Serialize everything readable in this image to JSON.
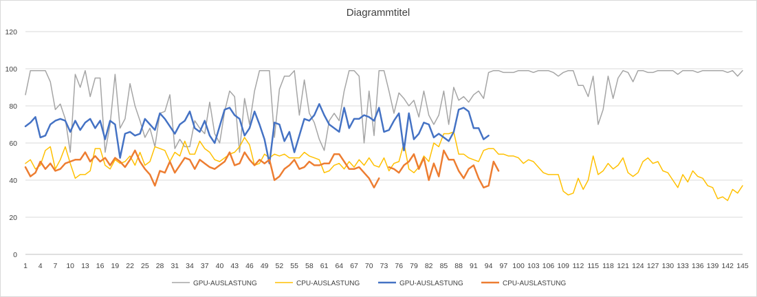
{
  "chart_data": {
    "type": "line",
    "title": "Diagrammtitel",
    "xlabel": "",
    "ylabel": "",
    "ylim": [
      0,
      120
    ],
    "yticks": [
      0,
      20,
      40,
      60,
      80,
      100,
      120
    ],
    "xlim": [
      1,
      145
    ],
    "xticks": [
      1,
      4,
      7,
      10,
      13,
      16,
      19,
      22,
      25,
      28,
      31,
      34,
      37,
      40,
      43,
      46,
      49,
      52,
      55,
      58,
      61,
      64,
      67,
      70,
      73,
      76,
      79,
      82,
      85,
      88,
      91,
      94,
      97,
      100,
      103,
      106,
      109,
      112,
      115,
      118,
      121,
      124,
      127,
      130,
      133,
      136,
      139,
      142,
      145
    ],
    "grid": "horizontal",
    "legend_position": "bottom",
    "series": [
      {
        "name": "GPU-AUSLASTUNG",
        "color": "#A5A5A5",
        "line_width": 1.5,
        "values": [
          86,
          99,
          99,
          99,
          99,
          93,
          78,
          81,
          73,
          55,
          97,
          90,
          99,
          85,
          95,
          95,
          55,
          70,
          97,
          68,
          73,
          92,
          80,
          72,
          63,
          68,
          58,
          76,
          77,
          86,
          57,
          62,
          58,
          58,
          72,
          68,
          65,
          82,
          65,
          60,
          77,
          88,
          85,
          55,
          84,
          70,
          88,
          99,
          99,
          99,
          63,
          89,
          96,
          96,
          99,
          75,
          94,
          76,
          71,
          62,
          56,
          72,
          76,
          72,
          88,
          99,
          99,
          96,
          60,
          88,
          64,
          99,
          99,
          88,
          76,
          87,
          84,
          80,
          83,
          74,
          88,
          75,
          70,
          75,
          88,
          70,
          90,
          83,
          85,
          82,
          86,
          88,
          84,
          98,
          99,
          99,
          98,
          98,
          98,
          99,
          99,
          99,
          98,
          99,
          99,
          99,
          98,
          96,
          98,
          99,
          99,
          91,
          91,
          85,
          96,
          70,
          78,
          96,
          84,
          95,
          99,
          98,
          93,
          99,
          99,
          98,
          98,
          99,
          99,
          99,
          99,
          97,
          99,
          99,
          99,
          98,
          99,
          99,
          99,
          99,
          99,
          98,
          99,
          96,
          99
        ]
      },
      {
        "name": "CPU-AUSLASTUNG",
        "color": "#FFC000",
        "line_width": 1.5,
        "values": [
          49,
          51,
          46,
          48,
          56,
          58,
          46,
          51,
          58,
          49,
          41,
          43,
          43,
          45,
          57,
          57,
          48,
          46,
          51,
          49,
          50,
          53,
          48,
          55,
          48,
          50,
          58,
          57,
          56,
          50,
          55,
          53,
          61,
          54,
          54,
          61,
          57,
          55,
          51,
          50,
          52,
          54,
          55,
          58,
          63,
          59,
          48,
          49,
          54,
          52,
          54,
          53,
          54,
          52,
          52,
          52,
          55,
          53,
          52,
          51,
          44,
          45,
          48,
          49,
          46,
          50,
          47,
          51,
          48,
          52,
          48,
          47,
          52,
          45,
          49,
          50,
          60,
          46,
          44,
          47,
          53,
          50,
          60,
          58,
          65,
          65,
          66,
          54,
          54,
          52,
          51,
          50,
          56,
          57,
          57,
          54,
          54,
          53,
          53,
          52,
          49,
          51,
          50,
          47,
          44,
          43,
          43,
          43,
          34,
          32,
          33,
          41,
          35,
          40,
          53,
          43,
          45,
          49,
          46,
          48,
          52,
          44,
          42,
          44,
          50,
          52,
          49,
          50,
          45,
          44,
          40,
          36,
          43,
          39,
          45,
          42,
          41,
          37,
          36,
          30,
          31,
          29,
          35,
          33,
          37
        ]
      },
      {
        "name": "GPU-AUSLASTUNG",
        "color": "#4472C4",
        "line_width": 2.5,
        "values": [
          69,
          71,
          74,
          63,
          64,
          70,
          72,
          73,
          72,
          66,
          72,
          67,
          71,
          73,
          68,
          72,
          62,
          72,
          70,
          52,
          65,
          66,
          64,
          65,
          73,
          70,
          67,
          76,
          73,
          69,
          65,
          70,
          72,
          77,
          68,
          66,
          72,
          64,
          60,
          69,
          78,
          79,
          75,
          73,
          64,
          68,
          77,
          70,
          62,
          49,
          71,
          70,
          61,
          66,
          55,
          64,
          73,
          72,
          75,
          81,
          75,
          70,
          68,
          66,
          79,
          68,
          73,
          73,
          75,
          74,
          72,
          79,
          66,
          67,
          72,
          76,
          56,
          76,
          62,
          65,
          71,
          70,
          63,
          65,
          63,
          61,
          66,
          78,
          79,
          77,
          68,
          68,
          62,
          64,
          null,
          null,
          null,
          null,
          null,
          null,
          null,
          null,
          null,
          null,
          null,
          null,
          null,
          null,
          null,
          null,
          null,
          null,
          null,
          null,
          null,
          null,
          null,
          null,
          null,
          null,
          null,
          null,
          null,
          null,
          null,
          null,
          null,
          null,
          null,
          null,
          null,
          null,
          null,
          null,
          null,
          null,
          null,
          null,
          null,
          null,
          null,
          null,
          null,
          null,
          null
        ]
      },
      {
        "name": "CPU-AUSLASTUNG",
        "color": "#ED7D31",
        "line_width": 2.5,
        "values": [
          47,
          42,
          44,
          50,
          46,
          49,
          45,
          46,
          49,
          50,
          51,
          51,
          55,
          50,
          53,
          50,
          52,
          48,
          52,
          50,
          47,
          51,
          56,
          50,
          46,
          43,
          37,
          45,
          44,
          50,
          44,
          48,
          52,
          51,
          46,
          51,
          49,
          47,
          46,
          48,
          50,
          55,
          48,
          49,
          55,
          51,
          48,
          51,
          49,
          51,
          40,
          42,
          46,
          48,
          51,
          46,
          47,
          50,
          48,
          48,
          49,
          49,
          54,
          54,
          50,
          46,
          46,
          47,
          44,
          41,
          36,
          41,
          null,
          47,
          46,
          44,
          48,
          50,
          54,
          46,
          52,
          40,
          49,
          42,
          56,
          51,
          51,
          45,
          41,
          46,
          48,
          41,
          36,
          37,
          50,
          45,
          null,
          null,
          null,
          null,
          null,
          null,
          null,
          null,
          null,
          null,
          null,
          null,
          null,
          null,
          null,
          null,
          null,
          null,
          null,
          null,
          null,
          null,
          null,
          null,
          null,
          null,
          null,
          null,
          null,
          null,
          null,
          null,
          null,
          null,
          null,
          null,
          null,
          null,
          null,
          null,
          null,
          null,
          null,
          null,
          null,
          null,
          null,
          null,
          null
        ]
      }
    ]
  }
}
